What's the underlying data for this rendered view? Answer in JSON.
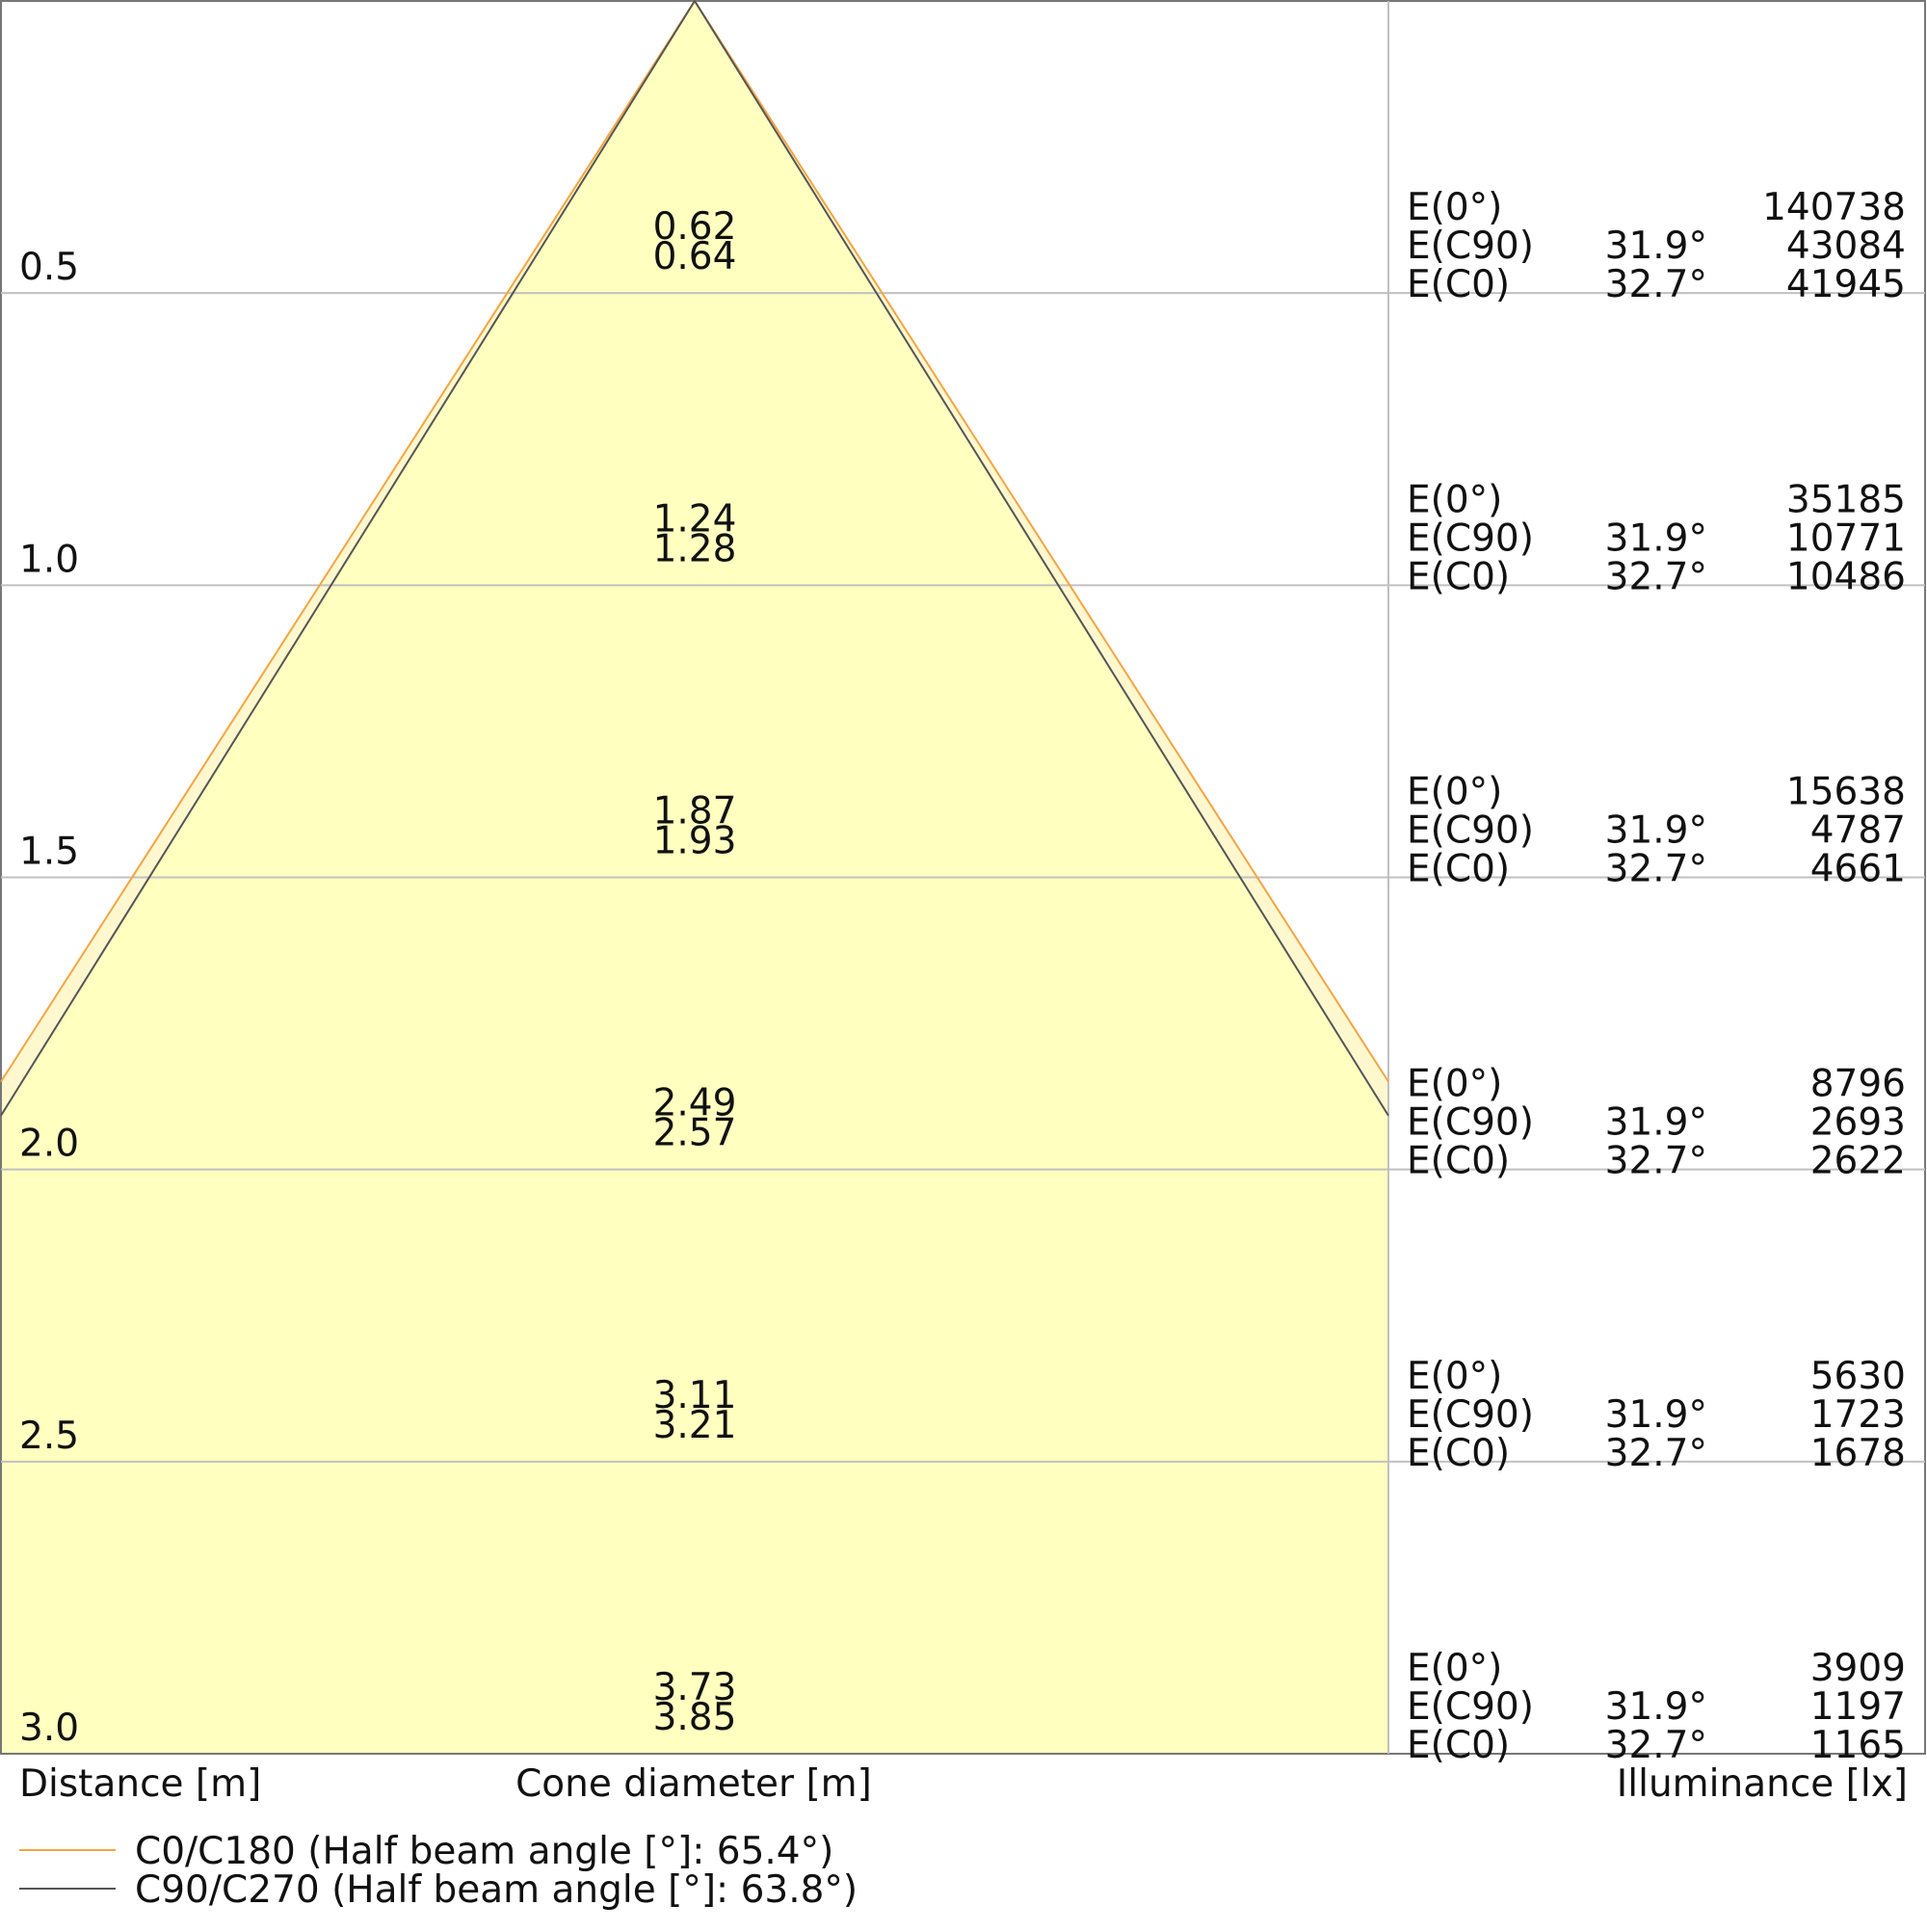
{
  "chart_data": {
    "type": "area",
    "title": "",
    "xlabel": "Cone diameter [m]",
    "ylabel": "Distance [m]",
    "right_label": "Illuminance [lx]",
    "distance_range": [
      0,
      3.0
    ],
    "grid": true,
    "legend_position": "bottom-left",
    "colors": {
      "cone_fill": "#ffffc0",
      "c0_line": "#f5a442",
      "c90_line": "#555555",
      "grid": "#c0c0c0",
      "frame": "#777777"
    },
    "series": [
      {
        "name": "C0/C180 (Half beam angle [°]: 65.4°)",
        "half_beam_angle": 32.7
      },
      {
        "name": "C90/C270 (Half beam angle [°]: 63.8°)",
        "half_beam_angle": 31.9
      }
    ],
    "rows": [
      {
        "distance": "0.5",
        "diameters": [
          "0.62",
          "0.64"
        ],
        "illuminance": [
          {
            "label": "E(0°)",
            "angle": "",
            "value": "140738"
          },
          {
            "label": "E(C90)",
            "angle": "31.9°",
            "value": "43084"
          },
          {
            "label": "E(C0)",
            "angle": "32.7°",
            "value": "41945"
          }
        ]
      },
      {
        "distance": "1.0",
        "diameters": [
          "1.24",
          "1.28"
        ],
        "illuminance": [
          {
            "label": "E(0°)",
            "angle": "",
            "value": "35185"
          },
          {
            "label": "E(C90)",
            "angle": "31.9°",
            "value": "10771"
          },
          {
            "label": "E(C0)",
            "angle": "32.7°",
            "value": "10486"
          }
        ]
      },
      {
        "distance": "1.5",
        "diameters": [
          "1.87",
          "1.93"
        ],
        "illuminance": [
          {
            "label": "E(0°)",
            "angle": "",
            "value": "15638"
          },
          {
            "label": "E(C90)",
            "angle": "31.9°",
            "value": "4787"
          },
          {
            "label": "E(C0)",
            "angle": "32.7°",
            "value": "4661"
          }
        ]
      },
      {
        "distance": "2.0",
        "diameters": [
          "2.49",
          "2.57"
        ],
        "illuminance": [
          {
            "label": "E(0°)",
            "angle": "",
            "value": "8796"
          },
          {
            "label": "E(C90)",
            "angle": "31.9°",
            "value": "2693"
          },
          {
            "label": "E(C0)",
            "angle": "32.7°",
            "value": "2622"
          }
        ]
      },
      {
        "distance": "2.5",
        "diameters": [
          "3.11",
          "3.21"
        ],
        "illuminance": [
          {
            "label": "E(0°)",
            "angle": "",
            "value": "5630"
          },
          {
            "label": "E(C90)",
            "angle": "31.9°",
            "value": "1723"
          },
          {
            "label": "E(C0)",
            "angle": "32.7°",
            "value": "1678"
          }
        ]
      },
      {
        "distance": "3.0",
        "diameters": [
          "3.73",
          "3.85"
        ],
        "illuminance": [
          {
            "label": "E(0°)",
            "angle": "",
            "value": "3909"
          },
          {
            "label": "E(C90)",
            "angle": "31.9°",
            "value": "1197"
          },
          {
            "label": "E(C0)",
            "angle": "32.7°",
            "value": "1165"
          }
        ]
      }
    ]
  }
}
